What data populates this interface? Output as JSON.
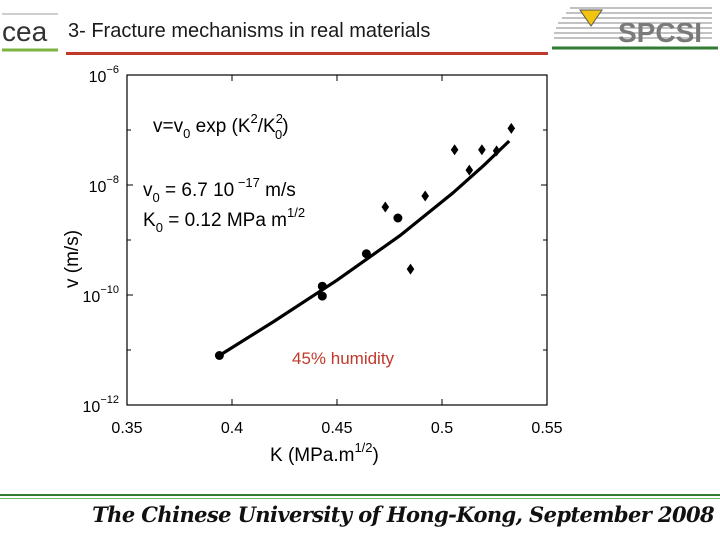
{
  "header": {
    "title": "3- Fracture mechanisms in real materials",
    "left_logo_text": "cea",
    "right_logo_text": "SPCSI",
    "rule_color": "#c0392b"
  },
  "footer": {
    "text": "The Chinese University of Hong-Kong, September 2008",
    "rule_color": "#2e7d32"
  },
  "chart_data": {
    "type": "scatter",
    "xlabel_base": "K (MPa.m",
    "xlabel_sup": "1/2",
    "xlabel_end": ")",
    "ylabel": "v (m/s)",
    "xlim": [
      0.35,
      0.55
    ],
    "x_ticks": [
      "0.35",
      "0.4",
      "0.45",
      "0.5",
      "0.55"
    ],
    "ylim_log10": [
      -12,
      -6
    ],
    "y_ticks": [
      {
        "exp": -6,
        "label": "10",
        "sup": "−6"
      },
      {
        "exp": -8,
        "label": "10",
        "sup": "−8"
      },
      {
        "exp": -10,
        "label": "10",
        "sup": "−10"
      },
      {
        "exp": -12,
        "label": "10",
        "sup": "−12"
      }
    ],
    "scale": "log-y",
    "grid": false,
    "series": [
      {
        "marker": "circle",
        "points": [
          [
            0.394,
            -11.1
          ],
          [
            0.443,
            -9.84
          ],
          [
            0.443,
            -10.02
          ],
          [
            0.464,
            -9.25
          ],
          [
            0.479,
            -8.6
          ]
        ]
      },
      {
        "marker": "diamond",
        "points": [
          [
            0.473,
            -8.4
          ],
          [
            0.485,
            -9.53
          ],
          [
            0.492,
            -8.2
          ],
          [
            0.506,
            -7.36
          ],
          [
            0.513,
            -7.73
          ],
          [
            0.519,
            -7.36
          ],
          [
            0.526,
            -7.38
          ],
          [
            0.533,
            -6.97
          ]
        ]
      }
    ],
    "fit_line": [
      [
        0.394,
        -11.1
      ],
      [
        0.42,
        -10.48
      ],
      [
        0.45,
        -9.73
      ],
      [
        0.48,
        -8.92
      ],
      [
        0.505,
        -8.15
      ],
      [
        0.52,
        -7.64
      ],
      [
        0.532,
        -7.2
      ]
    ],
    "annotations": {
      "eq_main": "v=v",
      "eq_sub0": "0",
      "eq_exp": " exp (K",
      "eq_sup2a": "2",
      "eq_slash": "/K",
      "eq_sup2b": "2",
      "eq_sub0b": "0",
      "eq_close": ")",
      "v0_label": "v",
      "v0_sub": "0",
      "v0_value": " = 6.7 10",
      "v0_sup": " −17",
      "v0_unit": " m/s",
      "k0_label": "K",
      "k0_sub": "0",
      "k0_value": " = 0.12 MPa m",
      "k0_sup": "1/2",
      "humidity": "45% humidity",
      "humidity_color": "#c0392b"
    }
  }
}
